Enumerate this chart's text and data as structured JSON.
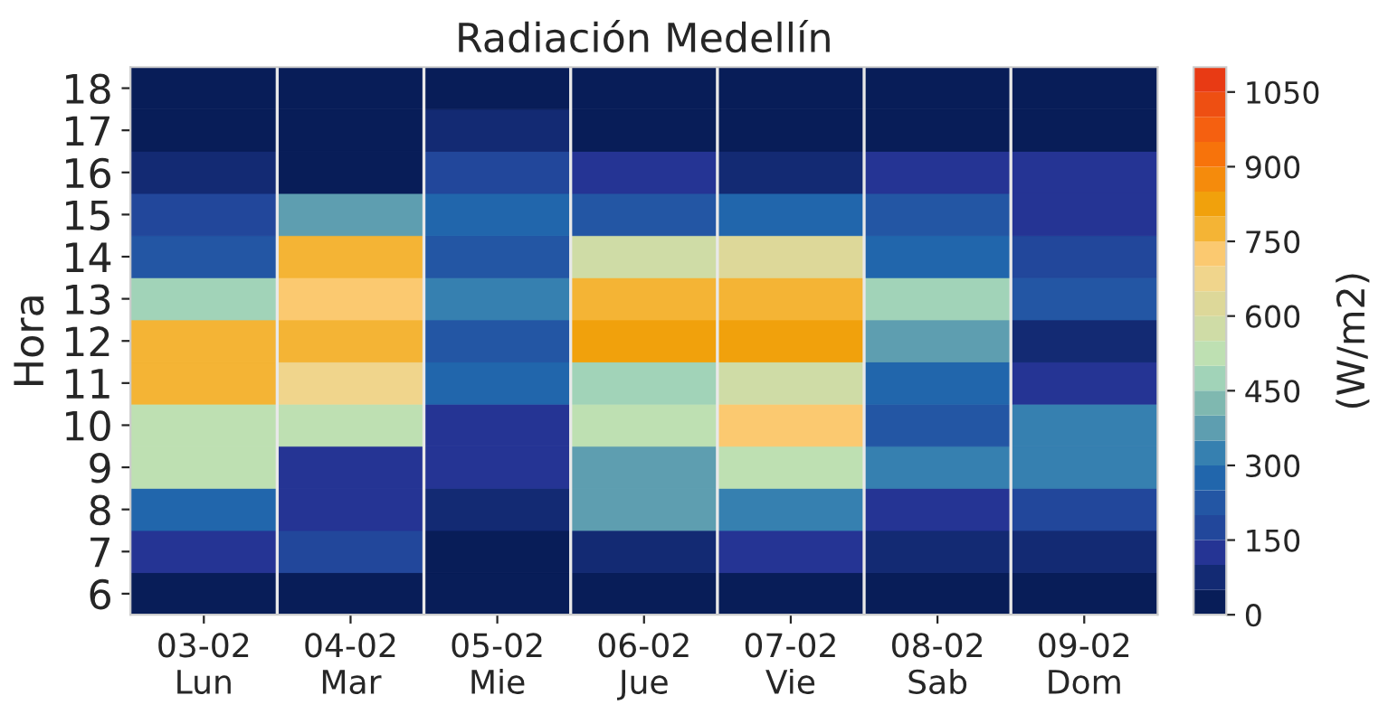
{
  "chart_data": {
    "type": "heatmap",
    "title": "Radiación Medellín",
    "ylabel": "Hora",
    "clabel": "(W/m2)",
    "categories": [
      "03-02\nLun",
      "04-02\nMar",
      "05-02\nMie",
      "06-02\nJue",
      "07-02\nVie",
      "08-02\nSab",
      "09-02\nDom"
    ],
    "y_categories": [
      "18",
      "17",
      "16",
      "15",
      "14",
      "13",
      "12",
      "11",
      "10",
      "9",
      "8",
      "7",
      "6"
    ],
    "cells": [
      [
        25,
        25,
        25,
        25,
        25,
        25,
        25
      ],
      [
        25,
        25,
        75,
        25,
        25,
        25,
        25
      ],
      [
        75,
        25,
        175,
        125,
        75,
        125,
        125
      ],
      [
        175,
        375,
        275,
        225,
        275,
        225,
        125
      ],
      [
        225,
        775,
        225,
        575,
        625,
        275,
        175
      ],
      [
        475,
        725,
        325,
        775,
        775,
        475,
        225
      ],
      [
        775,
        775,
        225,
        825,
        825,
        375,
        75
      ],
      [
        775,
        675,
        275,
        475,
        575,
        275,
        125
      ],
      [
        525,
        525,
        125,
        525,
        725,
        225,
        325
      ],
      [
        525,
        125,
        125,
        375,
        525,
        325,
        325
      ],
      [
        275,
        125,
        75,
        375,
        325,
        125,
        175
      ],
      [
        125,
        175,
        25,
        75,
        125,
        75,
        75
      ],
      [
        25,
        25,
        25,
        25,
        25,
        25,
        25
      ]
    ],
    "clim": [
      0,
      1100
    ],
    "cticks": [
      0,
      150,
      300,
      450,
      600,
      750,
      900,
      1050
    ]
  }
}
